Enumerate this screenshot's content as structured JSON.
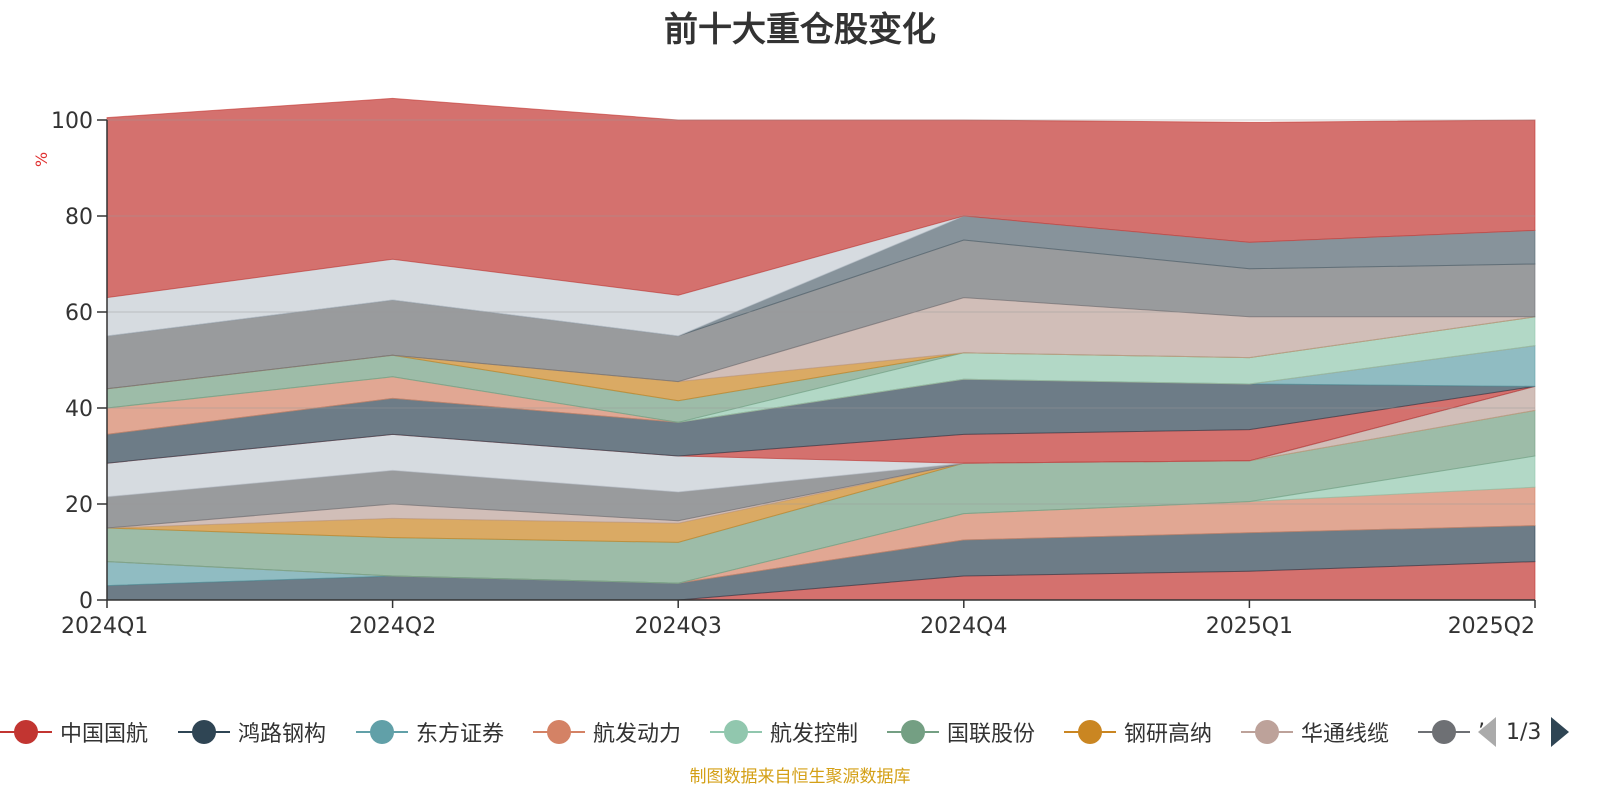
{
  "title": "前十大重仓股变化",
  "unit_label": "%",
  "source_note": "制图数据来自恒生聚源数据库",
  "pager": {
    "text": "1/3"
  },
  "chart_data": {
    "type": "area",
    "stacked": true,
    "title": "前十大重仓股变化",
    "ylabel": "%",
    "xlabel": "",
    "ylim": [
      0,
      100
    ],
    "yticks": [
      0,
      20,
      40,
      60,
      80,
      100
    ],
    "grid": true,
    "legend_position": "bottom",
    "categories": [
      "2024Q1",
      "2024Q2",
      "2024Q3",
      "2024Q4",
      "2025Q1",
      "2025Q2"
    ],
    "series": [
      {
        "name": "中国国航",
        "color": "#c23531",
        "values": [
          0,
          0,
          0,
          5,
          6,
          8
        ]
      },
      {
        "name": "鸿路钢构",
        "color": "#2f4554",
        "values": [
          3,
          5,
          3.5,
          7.5,
          8,
          7.5
        ]
      },
      {
        "name": "东方证券",
        "color": "#61a0a8",
        "values": [
          5,
          0,
          0,
          0,
          0,
          0
        ]
      },
      {
        "name": "航发动力",
        "color": "#d48265",
        "values": [
          0,
          0,
          0,
          5.5,
          6.5,
          8
        ]
      },
      {
        "name": "航发控制",
        "color": "#91c7ae",
        "values": [
          0,
          0,
          0,
          0,
          0,
          6.5
        ]
      },
      {
        "name": "国联股份",
        "color": "#749f83",
        "values": [
          7,
          8,
          8.5,
          10.5,
          8.5,
          9.5
        ]
      },
      {
        "name": "钢研高纳",
        "color": "#ca8622",
        "values": [
          0,
          4,
          4,
          0,
          0,
          0
        ]
      },
      {
        "name": "华通线缆",
        "color": "#bda29a",
        "values": [
          0,
          3,
          0.5,
          0,
          0,
          5
        ]
      },
      {
        "name": "",
        "color": "#6e7074",
        "values": [
          6.5,
          7,
          6,
          0,
          0,
          0
        ]
      },
      {
        "name": "",
        "color": "#c4ccd3",
        "values": [
          7,
          7.5,
          7.5,
          0,
          0,
          0
        ]
      },
      {
        "name": "",
        "color": "#c23531",
        "values": [
          0,
          0,
          0,
          6,
          6.5,
          0
        ]
      },
      {
        "name": "",
        "color": "#2f4554",
        "values": [
          6,
          7.5,
          7,
          11.5,
          9.5,
          0
        ]
      },
      {
        "name": "",
        "color": "#61a0a8",
        "values": [
          0,
          0,
          0,
          0,
          0,
          8.5
        ]
      },
      {
        "name": "",
        "color": "#d48265",
        "values": [
          5.5,
          4.5,
          0,
          0,
          0,
          0
        ]
      },
      {
        "name": "",
        "color": "#91c7ae",
        "values": [
          0,
          0,
          0,
          5.5,
          5.5,
          6
        ]
      },
      {
        "name": "",
        "color": "#749f83",
        "values": [
          4,
          4.5,
          4.5,
          0,
          0,
          0
        ]
      },
      {
        "name": "",
        "color": "#ca8622",
        "values": [
          0,
          0,
          4,
          0,
          0,
          0
        ]
      },
      {
        "name": "",
        "color": "#bda29a",
        "values": [
          0,
          0,
          0,
          11.5,
          8.5,
          0
        ]
      },
      {
        "name": "",
        "color": "#6e7074",
        "values": [
          11,
          11.5,
          9.5,
          12,
          10,
          11
        ]
      },
      {
        "name": "",
        "color": "#546570",
        "values": [
          0,
          0,
          0,
          5,
          5.5,
          7
        ]
      },
      {
        "name": "",
        "color": "#c4ccd3",
        "values": [
          8,
          8.5,
          8.5,
          0,
          0,
          0
        ]
      },
      {
        "name": "",
        "color": "#c23531",
        "values": [
          37.5,
          33.5,
          36.5,
          20,
          25,
          23
        ]
      }
    ]
  },
  "legend": {
    "items": [
      {
        "label": "中国国航",
        "color": "#c23531"
      },
      {
        "label": "鸿路钢构",
        "color": "#2f4554"
      },
      {
        "label": "东方证券",
        "color": "#61a0a8"
      },
      {
        "label": "航发动力",
        "color": "#d48265"
      },
      {
        "label": "航发控制",
        "color": "#91c7ae"
      },
      {
        "label": "国联股份",
        "color": "#749f83"
      },
      {
        "label": "钢研高纳",
        "color": "#ca8622"
      },
      {
        "label": "华通线缆",
        "color": "#bda29a"
      },
      {
        "label": "’",
        "color": "#6e7074"
      }
    ]
  }
}
